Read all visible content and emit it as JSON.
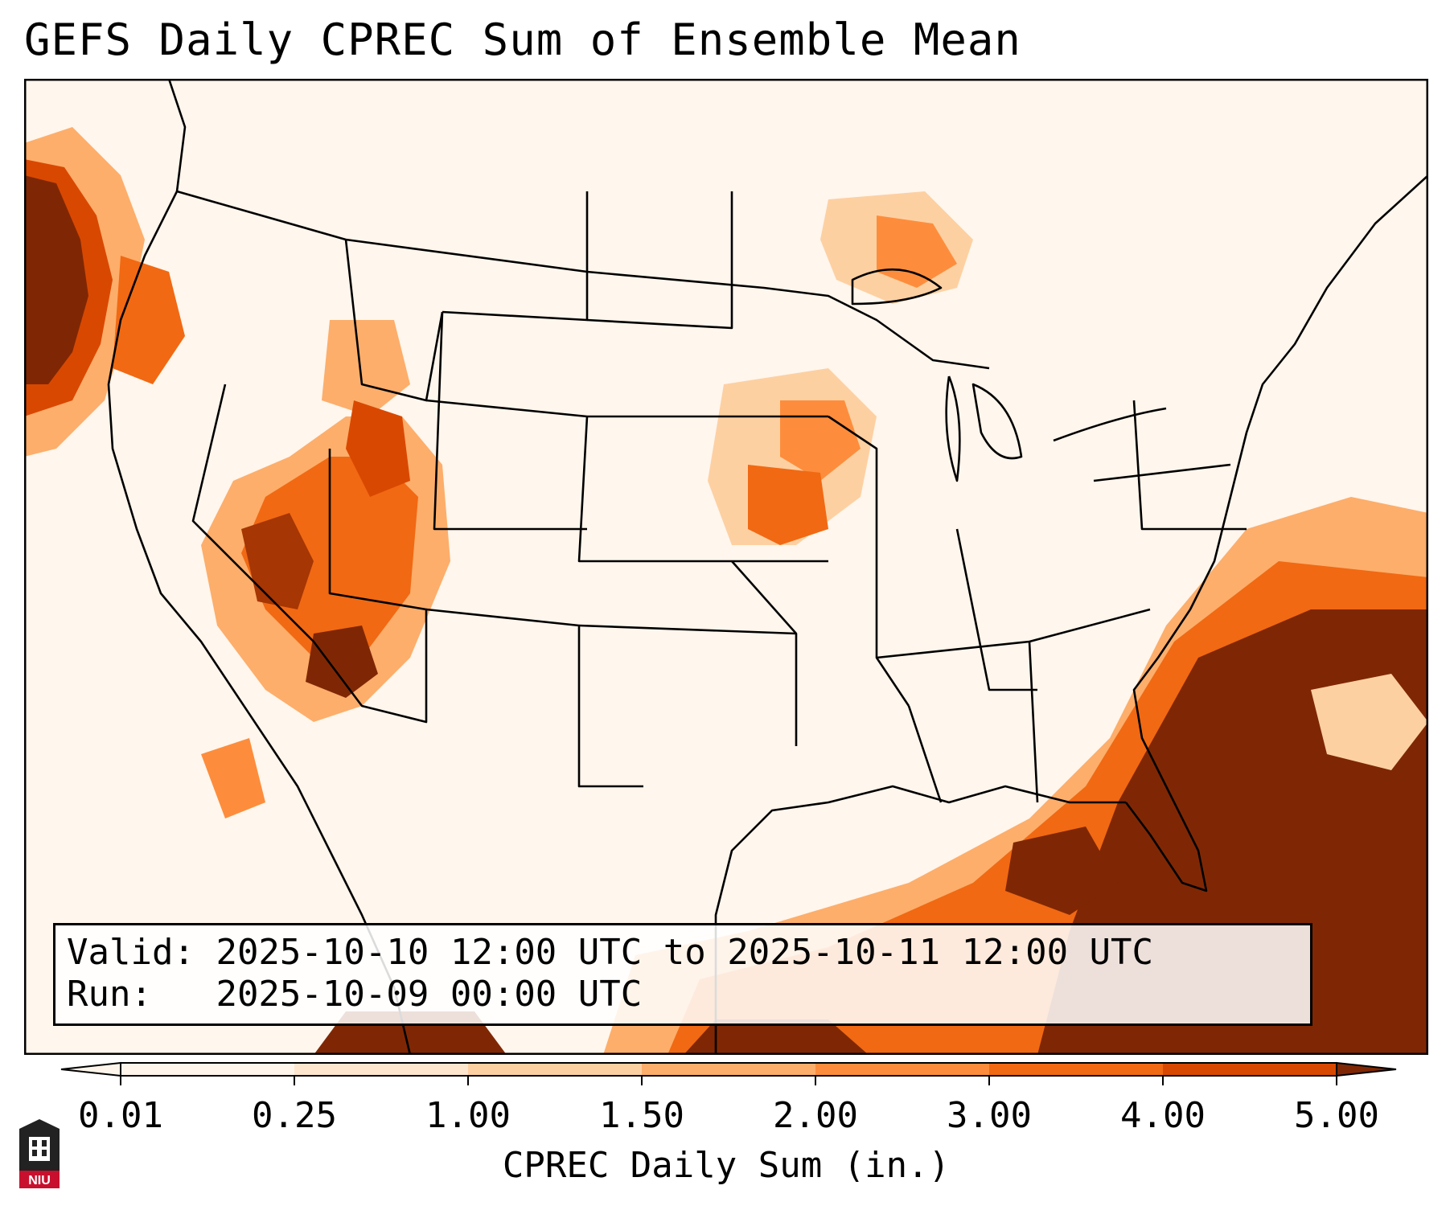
{
  "title": "GEFS Daily CPREC Sum of Ensemble Mean",
  "map": {
    "projection": "Lambert Conformal (CONUS)",
    "field": "CPREC daily sum, ensemble mean",
    "colors": [
      "#fff5eb",
      "#fee6ce",
      "#fdd0a2",
      "#fdae6b",
      "#fd8d3c",
      "#f16913",
      "#d94801",
      "#a63603",
      "#7f2704"
    ]
  },
  "info": {
    "valid_label": "Valid:",
    "valid_value": "2025-10-10 12:00 UTC to 2025-10-11 12:00 UTC",
    "run_label": "Run:",
    "run_value": "2025-10-09 00:00 UTC"
  },
  "colorbar": {
    "ticks": [
      "0.01",
      "0.25",
      "1.00",
      "1.50",
      "2.00",
      "3.00",
      "4.00",
      "5.00"
    ],
    "label": "CPREC Daily Sum (in.)",
    "extend": "both"
  },
  "logo": {
    "text": "NIU",
    "color": "#c8102e",
    "icon": "university-logo-icon"
  }
}
